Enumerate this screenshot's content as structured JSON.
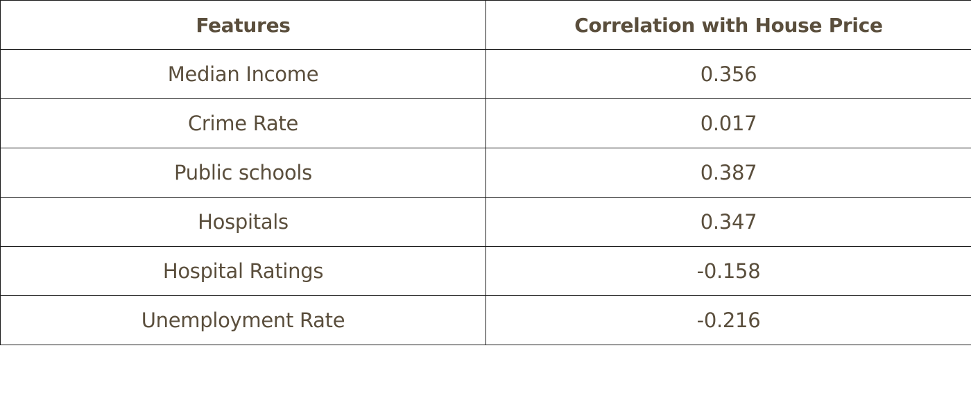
{
  "table": {
    "headers": [
      "Features",
      "Correlation with House Price"
    ],
    "rows": [
      [
        "Median Income",
        "0.356"
      ],
      [
        "Crime Rate",
        "0.017"
      ],
      [
        "Public schools",
        "0.387"
      ],
      [
        "Hospitals",
        "0.347"
      ],
      [
        "Hospital Ratings",
        "-0.158"
      ],
      [
        "Unemployment Rate",
        "-0.216"
      ]
    ]
  },
  "chart_data": {
    "type": "table",
    "columns": [
      "Features",
      "Correlation with House Price"
    ],
    "rows": [
      {
        "feature": "Median Income",
        "correlation": 0.356
      },
      {
        "feature": "Crime Rate",
        "correlation": 0.017
      },
      {
        "feature": "Public schools",
        "correlation": 0.387
      },
      {
        "feature": "Hospitals",
        "correlation": 0.347
      },
      {
        "feature": "Hospital Ratings",
        "correlation": -0.158
      },
      {
        "feature": "Unemployment Rate",
        "correlation": -0.216
      }
    ]
  }
}
